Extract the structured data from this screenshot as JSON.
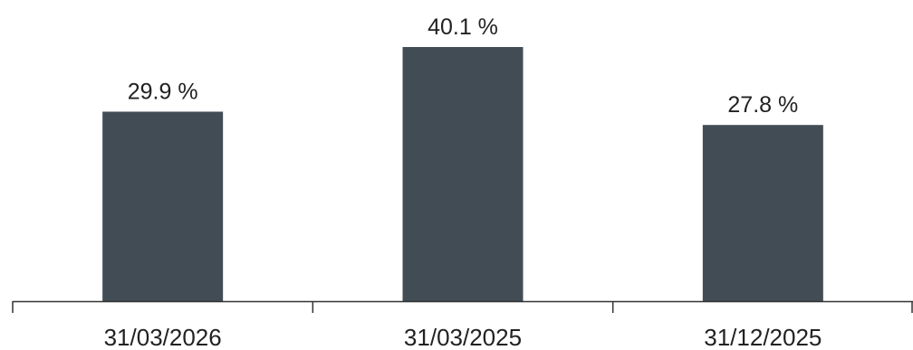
{
  "chart_data": {
    "type": "bar",
    "categories": [
      "31/03/2026",
      "31/03/2025",
      "31/12/2025"
    ],
    "values": [
      29.9,
      40.1,
      27.8
    ],
    "value_labels": [
      "29.9 %",
      "40.1 %",
      "27.8 %"
    ],
    "unit": "%",
    "title": "",
    "xlabel": "",
    "ylabel": "",
    "ylim": [
      0,
      40.1
    ],
    "grid": false,
    "legend": "none",
    "colors": {
      "bar": "#414c55",
      "axis": "#333333",
      "text": "#222222"
    }
  }
}
